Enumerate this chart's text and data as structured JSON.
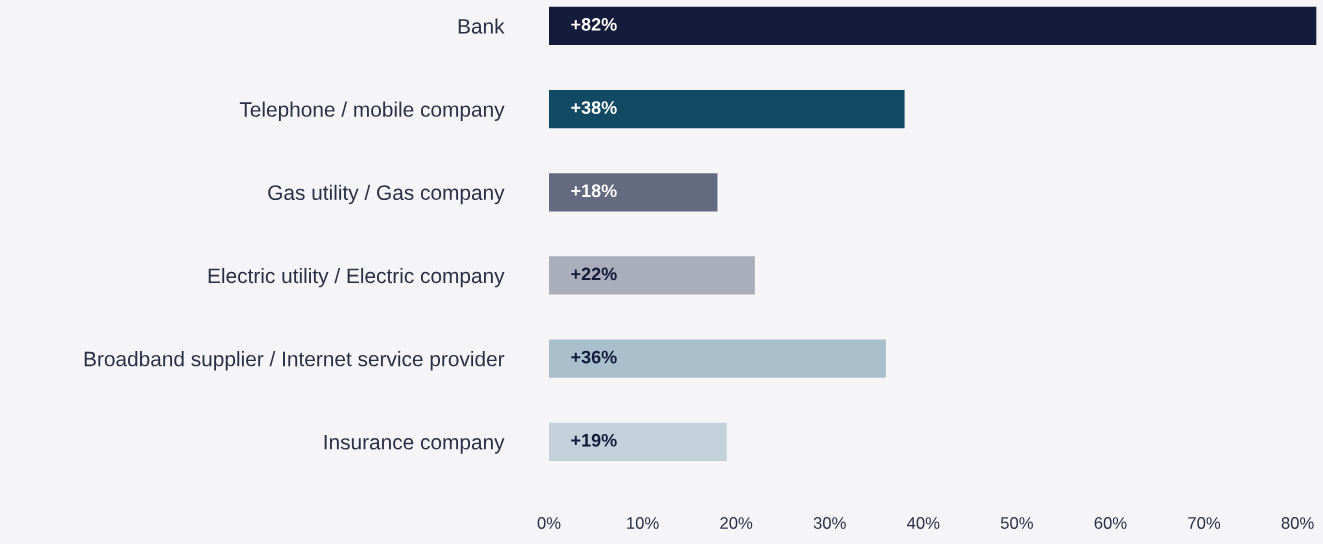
{
  "chart_data": {
    "type": "bar",
    "orientation": "horizontal",
    "categories": [
      "Bank",
      "Telephone / mobile company",
      "Gas utility / Gas company",
      "Electric utility / Electric company",
      "Broadband supplier / Internet service provider",
      "Insurance company"
    ],
    "values": [
      82,
      38,
      18,
      22,
      36,
      19
    ],
    "colors": [
      "#151b3a",
      "#124a63",
      "#646a7f",
      "#aaaeba",
      "#a9bfcc",
      "#c3d2da"
    ],
    "value_labels": [
      "+82%",
      "+38%",
      "+18%",
      "+22%",
      "+36%",
      "+19%"
    ],
    "xlim": [
      0,
      82.5
    ],
    "xticks": [
      {
        "value": 0,
        "label": "0%"
      },
      {
        "value": 10,
        "label": "10%"
      },
      {
        "value": 20,
        "label": "20%"
      },
      {
        "value": 30,
        "label": "30%"
      },
      {
        "value": 40,
        "label": "40%"
      },
      {
        "value": 50,
        "label": "50%"
      },
      {
        "value": 60,
        "label": "60%"
      },
      {
        "value": 70,
        "label": "70%"
      },
      {
        "value": 80,
        "label": "80%"
      }
    ],
    "grid": false,
    "legend": false
  }
}
